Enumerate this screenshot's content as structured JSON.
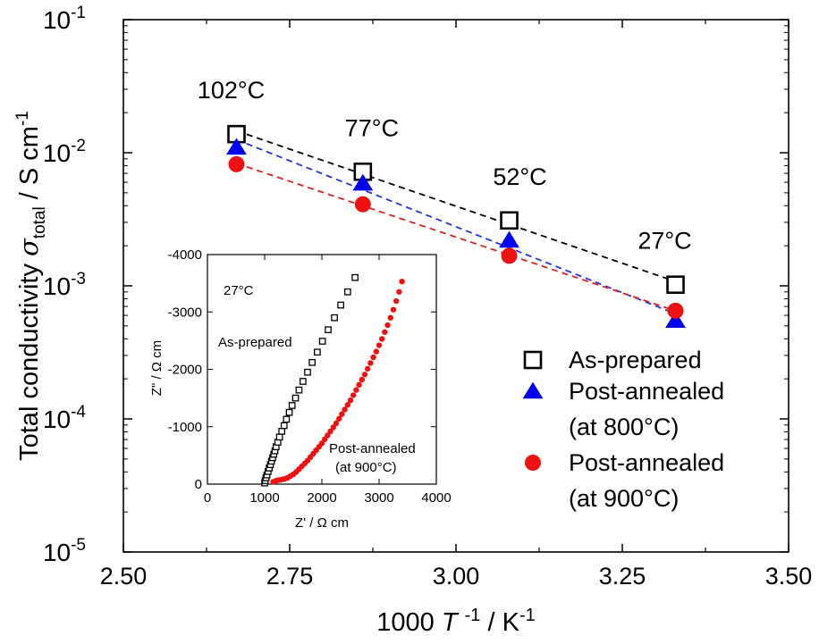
{
  "chart_data": [
    {
      "type": "scatter",
      "title": "",
      "xlabel": "1000 T -1 / K-1",
      "ylabel": "Total conductivity σtotal / S cm-1",
      "xlim": [
        2.5,
        3.5
      ],
      "ylim": [
        1e-05,
        0.1
      ],
      "yscale": "log",
      "grid": false,
      "legend_position": "right",
      "x_ticks": [
        "2.50",
        "2.75",
        "3.00",
        "3.25",
        "3.50"
      ],
      "y_ticks": [
        {
          "base": "10",
          "exp": "-5"
        },
        {
          "base": "10",
          "exp": "-4"
        },
        {
          "base": "10",
          "exp": "-3"
        },
        {
          "base": "10",
          "exp": "-2"
        },
        {
          "base": "10",
          "exp": "-1"
        }
      ],
      "annotations": [
        {
          "text": "102°C",
          "x": 2.67,
          "y": 0.0138
        },
        {
          "text": "77°C",
          "x": 2.86,
          "y": 0.0072
        },
        {
          "text": "52°C",
          "x": 3.08,
          "y": 0.0031
        },
        {
          "text": "27°C",
          "x": 3.33,
          "y": 0.00102
        }
      ],
      "series": [
        {
          "name": "As-prepared",
          "marker": "open-square",
          "color": "#000000",
          "fit_color": "#000000",
          "x": [
            2.67,
            2.86,
            3.08,
            3.33
          ],
          "y": [
            0.0138,
            0.0072,
            0.0031,
            0.00102
          ]
        },
        {
          "name": "Post-annealed",
          "name_line2": "(at 800°C)",
          "marker": "triangle",
          "color": "#0000ee",
          "fit_color": "#2233dd",
          "x": [
            2.67,
            2.86,
            3.08,
            3.33
          ],
          "y": [
            0.011,
            0.0059,
            0.0022,
            0.00055
          ]
        },
        {
          "name": "Post-annealed",
          "name_line2": "(at 900°C)",
          "marker": "circle",
          "color": "#ee1111",
          "fit_color": "#dd2222",
          "x": [
            2.67,
            2.86,
            3.08,
            3.33
          ],
          "y": [
            0.0082,
            0.0041,
            0.00168,
            0.00065
          ]
        }
      ]
    },
    {
      "type": "scatter",
      "title": "",
      "xlabel": "Z' / Ω cm",
      "ylabel": "Z\" / Ω cm",
      "xlim": [
        0,
        4000
      ],
      "ylim": [
        0,
        -4000
      ],
      "x_ticks": [
        "0",
        "1000",
        "2000",
        "3000",
        "4000"
      ],
      "y_ticks": [
        "0",
        "-1000",
        "-2000",
        "-3000",
        "-4000"
      ],
      "annotations": [
        {
          "text": "27°C",
          "color": "#000000"
        },
        {
          "text": "As-prepared",
          "color": "#000000"
        },
        {
          "text": "Post-annealed",
          "color": "#ee1111"
        },
        {
          "text": "(at 900°C)",
          "color": "#ee1111"
        }
      ],
      "series": [
        {
          "name": "As-prepared",
          "marker": "open-square",
          "color": "#000000",
          "x": [
            1000,
            1010,
            1025,
            1040,
            1060,
            1080,
            1100,
            1120,
            1140,
            1160,
            1180,
            1200,
            1230,
            1260,
            1300,
            1340,
            1380,
            1430,
            1480,
            1540,
            1600,
            1670,
            1750,
            1830,
            1920,
            2010,
            2110,
            2220,
            2330,
            2450,
            2580
          ],
          "y": [
            -20,
            -60,
            -110,
            -160,
            -220,
            -280,
            -340,
            -400,
            -460,
            -520,
            -580,
            -650,
            -730,
            -820,
            -920,
            -1020,
            -1130,
            -1250,
            -1370,
            -1500,
            -1640,
            -1790,
            -1950,
            -2120,
            -2300,
            -2490,
            -2690,
            -2900,
            -3120,
            -3350,
            -3600
          ]
        },
        {
          "name": "Post-annealed (at 900°C)",
          "marker": "circle",
          "color": "#ee1111",
          "x": [
            1150,
            1200,
            1250,
            1300,
            1350,
            1400,
            1450,
            1500,
            1550,
            1600,
            1650,
            1700,
            1750,
            1800,
            1850,
            1900,
            1950,
            2000,
            2050,
            2100,
            2150,
            2200,
            2250,
            2300,
            2350,
            2400,
            2450,
            2500,
            2550,
            2600,
            2650,
            2700,
            2750,
            2800,
            2850,
            2900,
            2950,
            3000,
            3050,
            3100,
            3150,
            3200,
            3250,
            3300,
            3350,
            3400
          ],
          "y": [
            -40,
            -60,
            -70,
            -80,
            -90,
            -110,
            -140,
            -170,
            -210,
            -260,
            -310,
            -360,
            -410,
            -470,
            -530,
            -590,
            -650,
            -710,
            -780,
            -850,
            -920,
            -990,
            -1060,
            -1140,
            -1220,
            -1300,
            -1380,
            -1460,
            -1550,
            -1640,
            -1730,
            -1820,
            -1910,
            -2010,
            -2110,
            -2210,
            -2310,
            -2420,
            -2530,
            -2650,
            -2770,
            -2900,
            -3040,
            -3190,
            -3350,
            -3530
          ]
        }
      ]
    }
  ]
}
